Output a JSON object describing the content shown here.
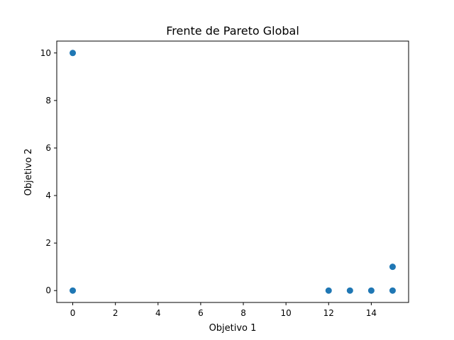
{
  "chart_data": {
    "type": "scatter",
    "title": "Frente de Pareto Global",
    "xlabel": "Objetivo 1",
    "ylabel": "Objetivo 2",
    "xlim": [
      -0.75,
      15.75
    ],
    "ylim": [
      -0.5,
      10.5
    ],
    "xticks": [
      0,
      2,
      4,
      6,
      8,
      10,
      12,
      14
    ],
    "yticks": [
      0,
      2,
      4,
      6,
      8,
      10
    ],
    "grid": false,
    "marker_color": "#1f77b4",
    "series": [
      {
        "x": [
          0,
          0,
          12,
          13,
          14,
          15,
          15
        ],
        "y": [
          10,
          0,
          0,
          0,
          0,
          1,
          0
        ]
      }
    ]
  }
}
